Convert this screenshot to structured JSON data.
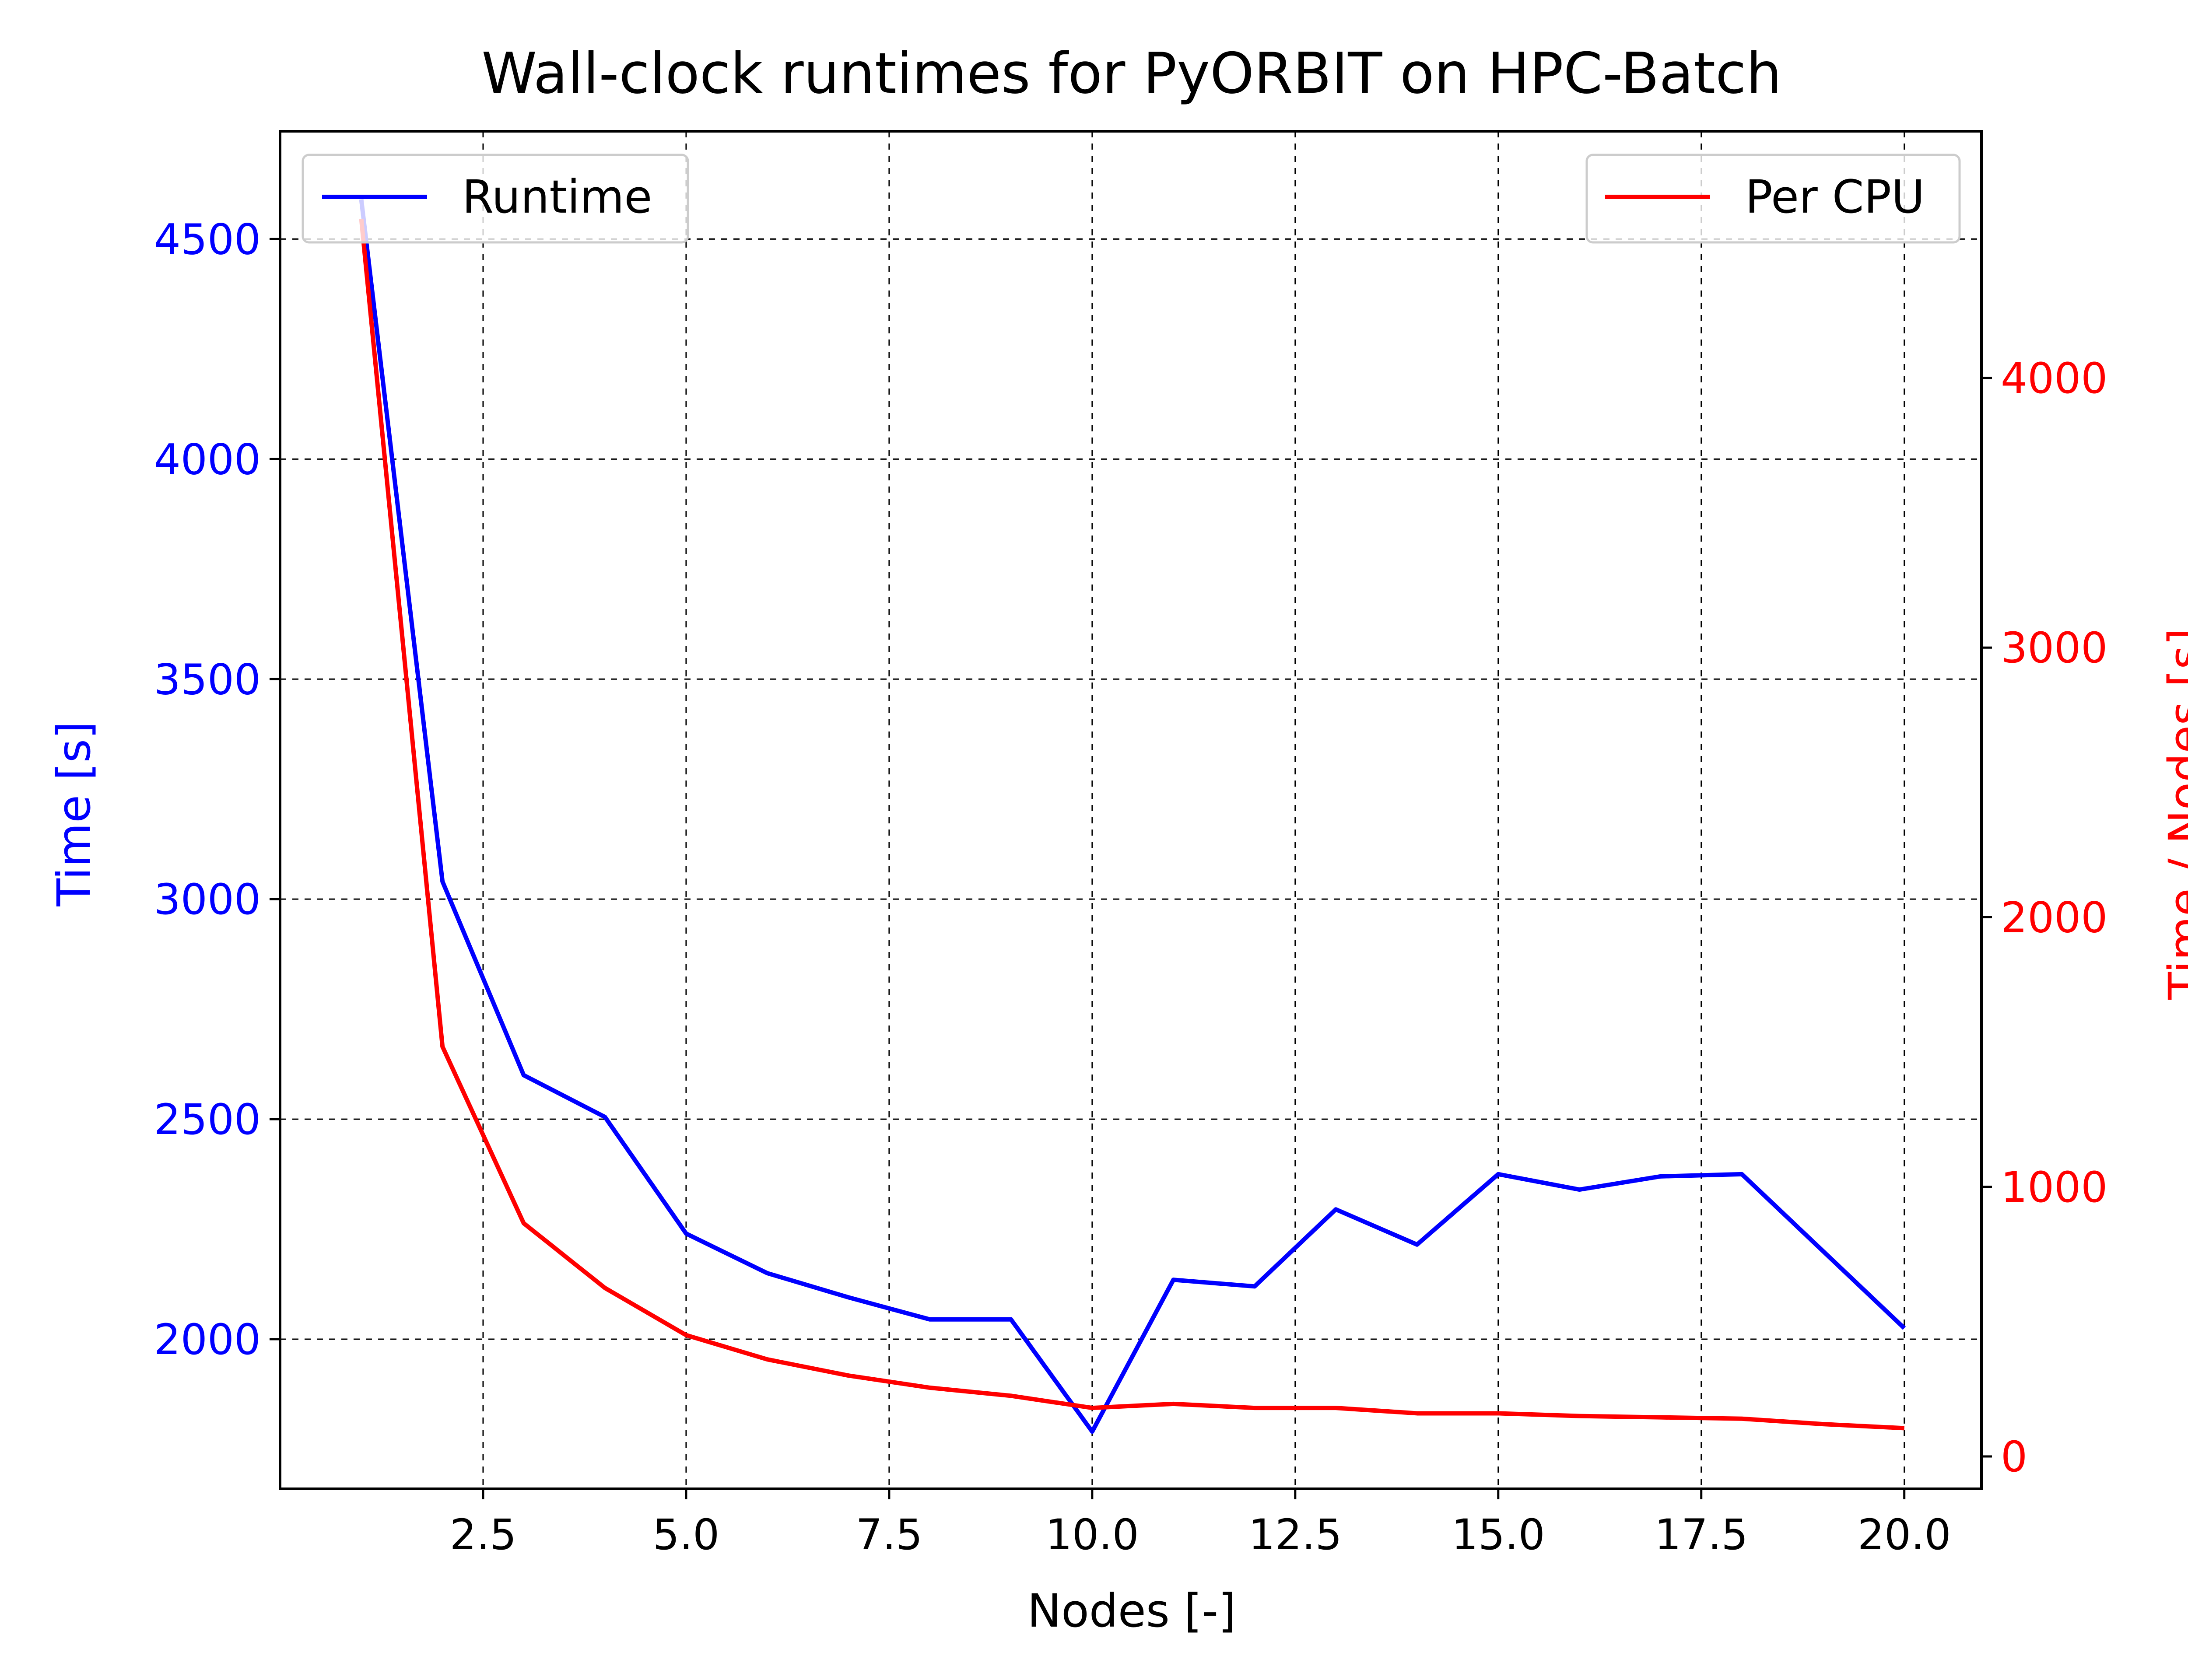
{
  "chart_data": {
    "type": "line",
    "title": "Wall-clock runtimes for PyORBIT on HPC-Batch",
    "xlabel": "Nodes [-]",
    "ylabel_left": "Time [s]",
    "ylabel_right": "Time / Nodes [s]",
    "xlim": [
      0.0,
      20.95
    ],
    "ylim_left": [
      1660,
      4745
    ],
    "ylim_right": [
      -120,
      4915
    ],
    "x_ticks": [
      2.5,
      5.0,
      7.5,
      10.0,
      12.5,
      15.0,
      17.5,
      20.0
    ],
    "x_tick_labels": [
      "2.5",
      "5.0",
      "7.5",
      "10.0",
      "12.5",
      "15.0",
      "17.5",
      "20.0"
    ],
    "y_left_ticks": [
      2000,
      2500,
      3000,
      3500,
      4000,
      4500
    ],
    "y_left_tick_labels": [
      "2000",
      "2500",
      "3000",
      "3500",
      "4000",
      "4500"
    ],
    "y_right_ticks": [
      0,
      1000,
      2000,
      3000,
      4000
    ],
    "y_right_tick_labels": [
      "0",
      "1000",
      "2000",
      "3000",
      "4000"
    ],
    "grid": true,
    "x": [
      1,
      2,
      3,
      4,
      5,
      6,
      7,
      8,
      9,
      10,
      11,
      12,
      13,
      14,
      15,
      16,
      17,
      18,
      19,
      20
    ],
    "series": [
      {
        "name": "Runtime",
        "axis": "left",
        "color": "#0000ff",
        "legend_position": "upper-left",
        "values": [
          4590,
          3040,
          2600,
          2505,
          2240,
          2150,
          2095,
          2045,
          2045,
          1790,
          2135,
          2120,
          2295,
          2215,
          2375,
          2340,
          2370,
          2375,
          2200,
          2025
        ]
      },
      {
        "name": "Per CPU",
        "axis": "right",
        "color": "#ff0000",
        "legend_position": "upper-right",
        "values": [
          4590,
          1520,
          865,
          625,
          450,
          360,
          300,
          255,
          225,
          180,
          195,
          180,
          180,
          160,
          160,
          150,
          145,
          140,
          120,
          105
        ]
      }
    ]
  }
}
